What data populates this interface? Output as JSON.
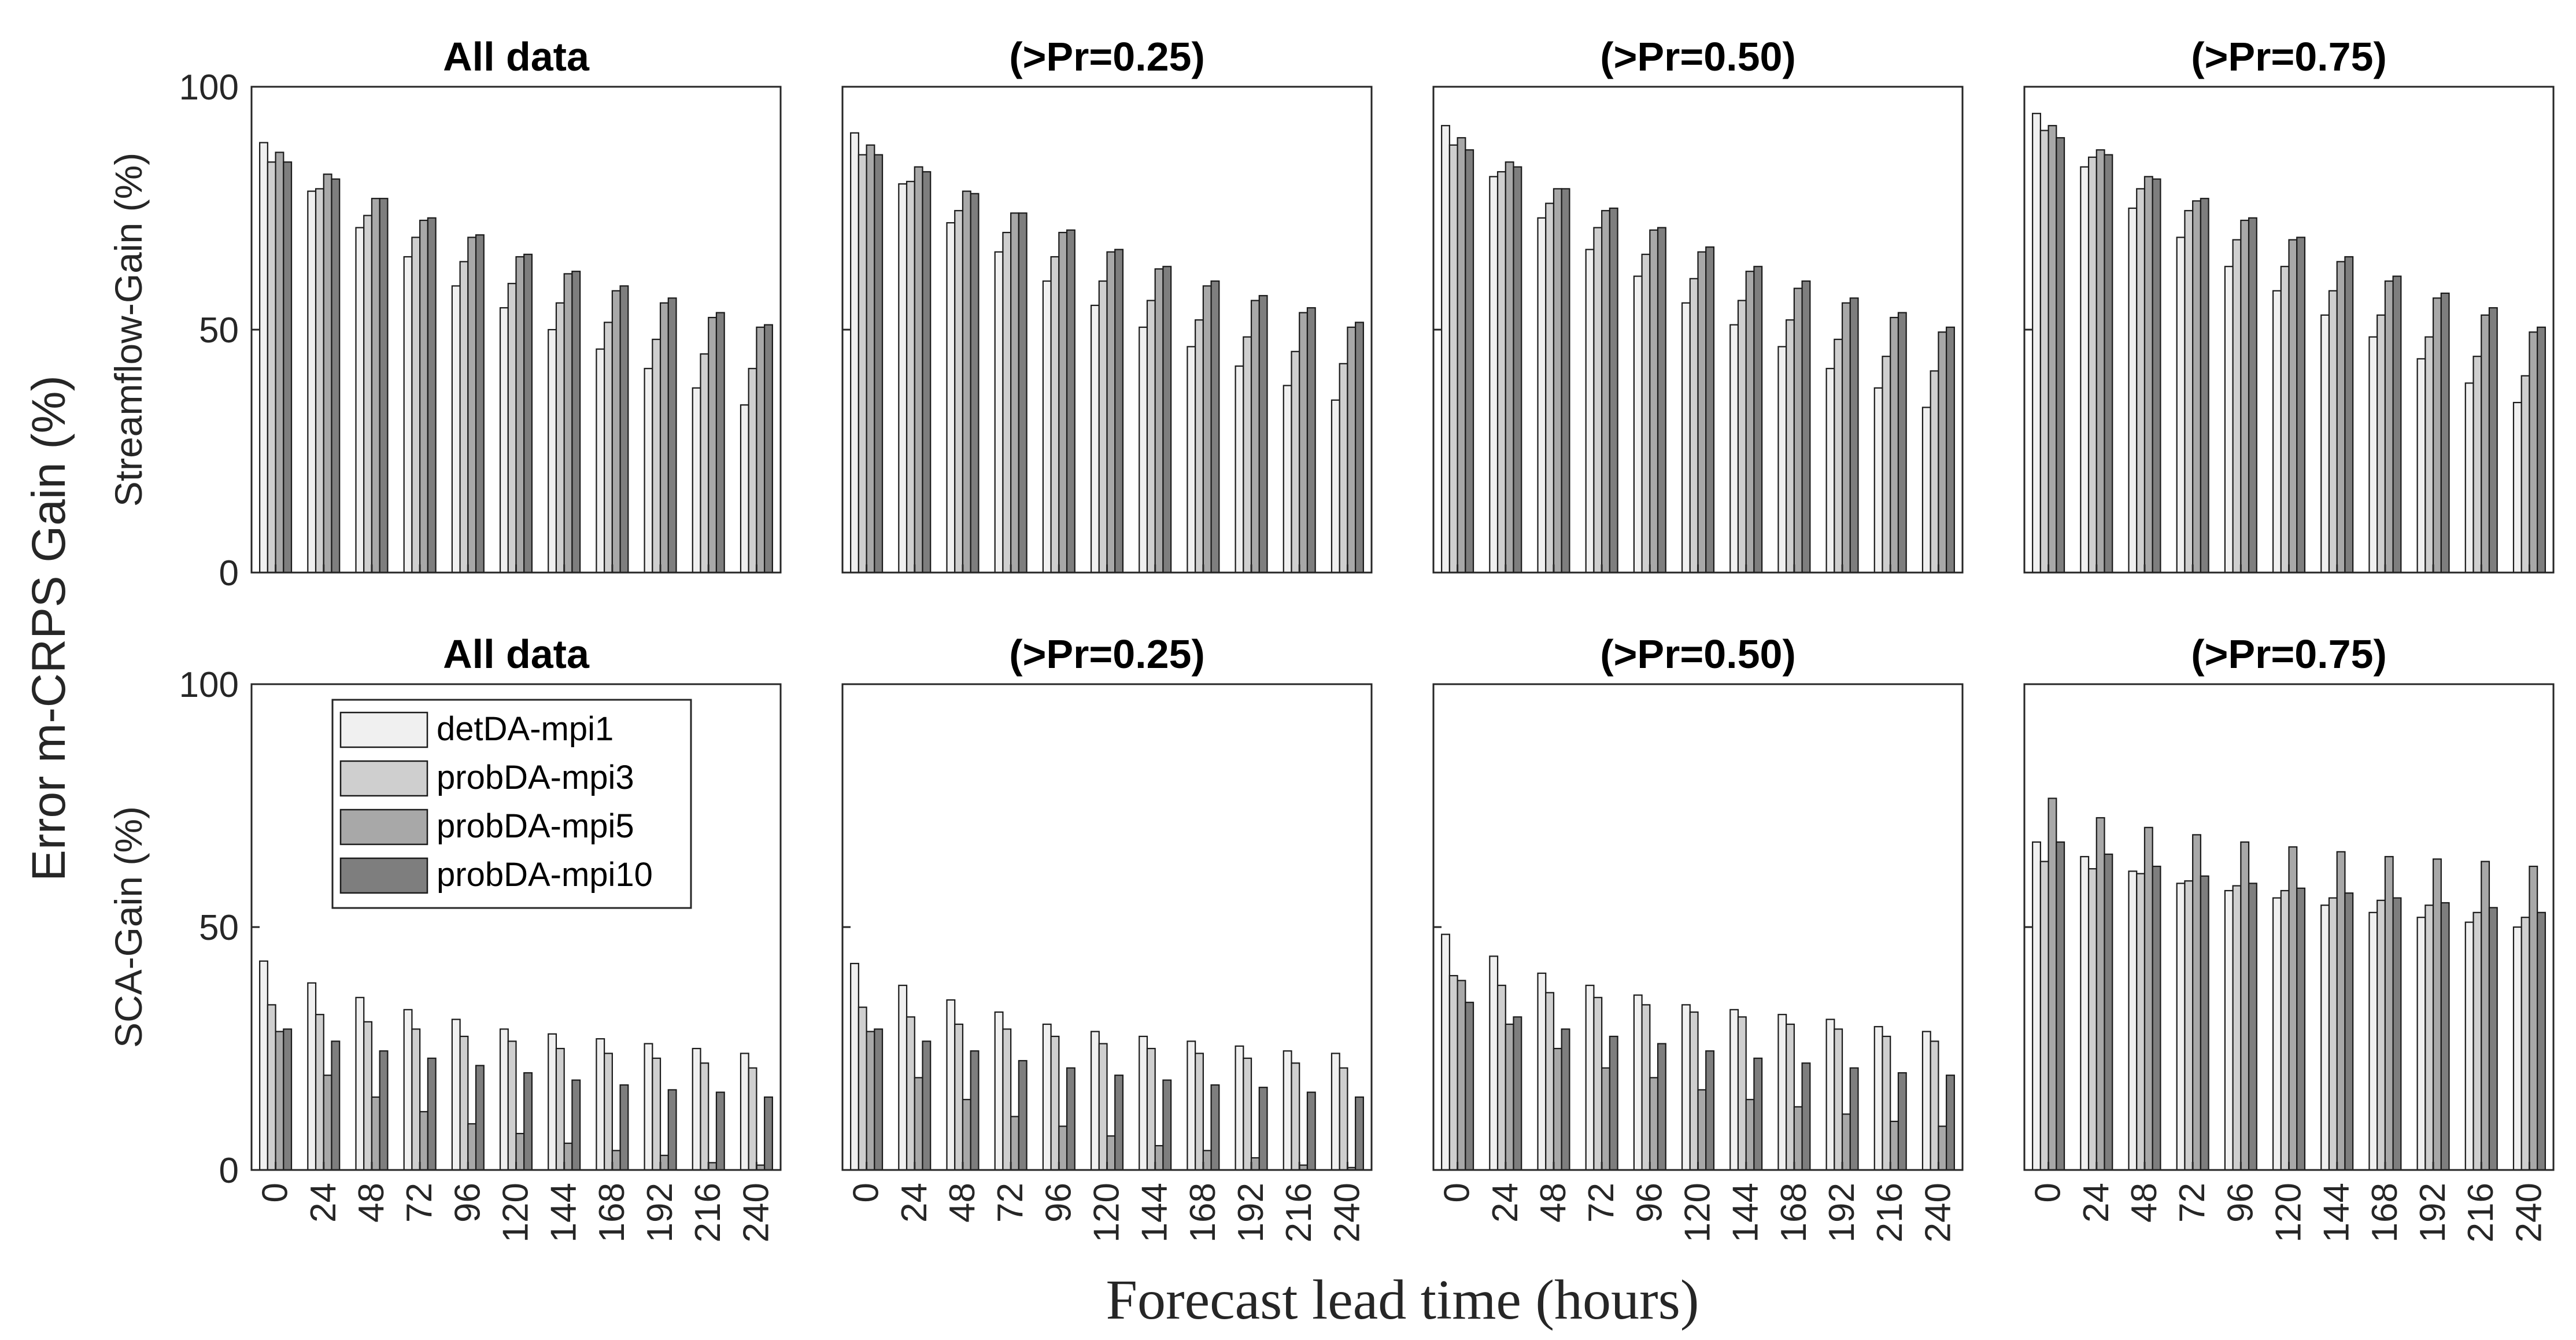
{
  "chart_data": {
    "type": "bar",
    "x_categories": [
      "0",
      "24",
      "48",
      "72",
      "96",
      "120",
      "144",
      "168",
      "192",
      "216",
      "240"
    ],
    "xlabel": "Forecast lead time (hours)",
    "ylabel_overall": "Error m-CRPS Gain (%)",
    "row_ylabels": [
      "Streamflow-Gain (%)",
      "SCA-Gain (%)"
    ],
    "ylim": [
      0,
      100
    ],
    "yticks": [
      "0",
      "50",
      "100"
    ],
    "legend": {
      "location": "inside top-left of bottom-left panel",
      "entries": [
        "detDA-mpi1",
        "probDA-mpi3",
        "probDA-mpi5",
        "probDA-mpi10"
      ]
    },
    "series_colors": [
      "#f0f0f0",
      "#cfcfcf",
      "#a8a8a8",
      "#7e7e7e"
    ],
    "panels": [
      {
        "row": 0,
        "col": 0,
        "title": "All data",
        "series": [
          {
            "name": "detDA-mpi1",
            "values": [
              88.5,
              78.5,
              71,
              65,
              59,
              54.5,
              50,
              46,
              42,
              38,
              34.5
            ]
          },
          {
            "name": "probDA-mpi3",
            "values": [
              84.5,
              79,
              73.5,
              69,
              64,
              59.5,
              55.5,
              51.5,
              48,
              45,
              42
            ]
          },
          {
            "name": "probDA-mpi5",
            "values": [
              86.5,
              82,
              77,
              72.5,
              69,
              65,
              61.5,
              58,
              55.5,
              52.5,
              50.5
            ]
          },
          {
            "name": "probDA-mpi10",
            "values": [
              84.5,
              81,
              77,
              73,
              69.5,
              65.5,
              62,
              59,
              56.5,
              53.5,
              51
            ]
          }
        ]
      },
      {
        "row": 0,
        "col": 1,
        "title": "(>Pr=0.25)",
        "series": [
          {
            "name": "detDA-mpi1",
            "values": [
              90.5,
              80,
              72,
              66,
              60,
              55,
              50.5,
              46.5,
              42.5,
              38.5,
              35.5
            ]
          },
          {
            "name": "probDA-mpi3",
            "values": [
              86,
              80.5,
              74.5,
              70,
              65,
              60,
              56,
              52,
              48.5,
              45.5,
              43
            ]
          },
          {
            "name": "probDA-mpi5",
            "values": [
              88,
              83.5,
              78.5,
              74,
              70,
              66,
              62.5,
              59,
              56,
              53.5,
              50.5
            ]
          },
          {
            "name": "probDA-mpi10",
            "values": [
              86,
              82.5,
              78,
              74,
              70.5,
              66.5,
              63,
              60,
              57,
              54.5,
              51.5
            ]
          }
        ]
      },
      {
        "row": 0,
        "col": 2,
        "title": "(>Pr=0.50)",
        "series": [
          {
            "name": "detDA-mpi1",
            "values": [
              92,
              81.5,
              73,
              66.5,
              61,
              55.5,
              51,
              46.5,
              42,
              38,
              34
            ]
          },
          {
            "name": "probDA-mpi3",
            "values": [
              88,
              82.5,
              76,
              71,
              65.5,
              60.5,
              56,
              52,
              48,
              44.5,
              41.5
            ]
          },
          {
            "name": "probDA-mpi5",
            "values": [
              89.5,
              84.5,
              79,
              74.5,
              70.5,
              66,
              62,
              58.5,
              55.5,
              52.5,
              49.5
            ]
          },
          {
            "name": "probDA-mpi10",
            "values": [
              87,
              83.5,
              79,
              75,
              71,
              67,
              63,
              60,
              56.5,
              53.5,
              50.5
            ]
          }
        ]
      },
      {
        "row": 0,
        "col": 3,
        "title": "(>Pr=0.75)",
        "series": [
          {
            "name": "detDA-mpi1",
            "values": [
              94.5,
              83.5,
              75,
              69,
              63,
              58,
              53,
              48.5,
              44,
              39,
              35
            ]
          },
          {
            "name": "probDA-mpi3",
            "values": [
              91,
              85.5,
              79,
              74.5,
              68.5,
              63,
              58,
              53,
              48.5,
              44.5,
              40.5
            ]
          },
          {
            "name": "probDA-mpi5",
            "values": [
              92,
              87,
              81.5,
              76.5,
              72.5,
              68.5,
              64,
              60,
              56.5,
              53,
              49.5
            ]
          },
          {
            "name": "probDA-mpi10",
            "values": [
              89.5,
              86,
              81,
              77,
              73,
              69,
              65,
              61,
              57.5,
              54.5,
              50.5
            ]
          }
        ]
      },
      {
        "row": 1,
        "col": 0,
        "title": "All data",
        "series": [
          {
            "name": "detDA-mpi1",
            "values": [
              43,
              38.5,
              35.5,
              33,
              31,
              29,
              28,
              27,
              26,
              25,
              24
            ]
          },
          {
            "name": "probDA-mpi3",
            "values": [
              34,
              32,
              30.5,
              29,
              27.5,
              26.5,
              25,
              24,
              23,
              22,
              21
            ]
          },
          {
            "name": "probDA-mpi5",
            "values": [
              28.5,
              19.5,
              15,
              12,
              9.5,
              7.5,
              5.5,
              4,
              3,
              1.5,
              1
            ]
          },
          {
            "name": "probDA-mpi10",
            "values": [
              29,
              26.5,
              24.5,
              23,
              21.5,
              20,
              18.5,
              17.5,
              16.5,
              16,
              15
            ]
          }
        ]
      },
      {
        "row": 1,
        "col": 1,
        "title": "(>Pr=0.25)",
        "series": [
          {
            "name": "detDA-mpi1",
            "values": [
              42.5,
              38,
              35,
              32.5,
              30,
              28.5,
              27.5,
              26.5,
              25.5,
              24.5,
              24
            ]
          },
          {
            "name": "probDA-mpi3",
            "values": [
              33.5,
              31.5,
              30,
              29,
              27.5,
              26,
              25,
              24,
              23,
              22,
              21
            ]
          },
          {
            "name": "probDA-mpi5",
            "values": [
              28.5,
              19,
              14.5,
              11,
              9,
              7,
              5,
              4,
              2.5,
              1,
              0.5
            ]
          },
          {
            "name": "probDA-mpi10",
            "values": [
              29,
              26.5,
              24.5,
              22.5,
              21,
              19.5,
              18.5,
              17.5,
              17,
              16,
              15
            ]
          }
        ]
      },
      {
        "row": 1,
        "col": 2,
        "title": "(>Pr=0.50)",
        "series": [
          {
            "name": "detDA-mpi1",
            "values": [
              48.5,
              44,
              40.5,
              38,
              36,
              34,
              33,
              32,
              31,
              29.5,
              28.5
            ]
          },
          {
            "name": "probDA-mpi3",
            "values": [
              40,
              38,
              36.5,
              35.5,
              34,
              32.5,
              31.5,
              30,
              29,
              27.5,
              26.5
            ]
          },
          {
            "name": "probDA-mpi5",
            "values": [
              39,
              30,
              25,
              21,
              19,
              16.5,
              14.5,
              13,
              11.5,
              10,
              9
            ]
          },
          {
            "name": "probDA-mpi10",
            "values": [
              34.5,
              31.5,
              29,
              27.5,
              26,
              24.5,
              23,
              22,
              21,
              20,
              19.5
            ]
          }
        ]
      },
      {
        "row": 1,
        "col": 3,
        "title": "(>Pr=0.75)",
        "series": [
          {
            "name": "detDA-mpi1",
            "values": [
              67.5,
              64.5,
              61.5,
              59,
              57.5,
              56,
              54.5,
              53,
              52,
              51,
              50
            ]
          },
          {
            "name": "probDA-mpi3",
            "values": [
              63.5,
              62,
              61,
              59.5,
              58.5,
              57.5,
              56,
              55.5,
              54.5,
              53,
              52
            ]
          },
          {
            "name": "probDA-mpi5",
            "values": [
              76.5,
              72.5,
              70.5,
              69,
              67.5,
              66.5,
              65.5,
              64.5,
              64,
              63.5,
              62.5
            ]
          },
          {
            "name": "probDA-mpi10",
            "values": [
              67.5,
              65,
              62.5,
              60.5,
              59,
              58,
              57,
              56,
              55,
              54,
              53
            ]
          }
        ]
      }
    ]
  }
}
